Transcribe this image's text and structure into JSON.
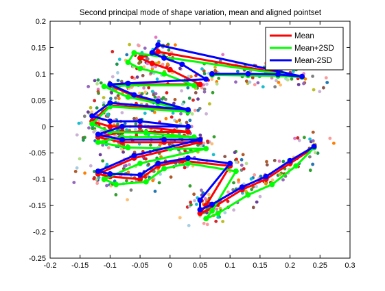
{
  "chart_data": {
    "type": "line",
    "title": "Second principal mode of shape variation, mean and aligned pointset",
    "xlabel": "",
    "ylabel": "",
    "xlim": [
      -0.2,
      0.3
    ],
    "ylim": [
      -0.25,
      0.2
    ],
    "xticks": [
      "-0.2",
      "-0.15",
      "-0.1",
      "-0.05",
      "0",
      "0.05",
      "0.1",
      "0.15",
      "0.2",
      "0.25",
      "0.3"
    ],
    "yticks": [
      "0.2",
      "0.15",
      "0.1",
      "0.05",
      "0",
      "-0.05",
      "-0.1",
      "-0.15",
      "-0.2",
      "-0.25"
    ],
    "grid": false,
    "legend_position": "top-right",
    "series": [
      {
        "name": "Mean",
        "color": "#ff0000",
        "x": [
          0.07,
          0.13,
          0.18,
          0.22,
          -0.02,
          -0.05,
          -0.03,
          0.0,
          0.05,
          -0.07,
          -0.1,
          -0.06,
          -0.02,
          0.03,
          -0.1,
          -0.13,
          -0.1,
          -0.05,
          0.03,
          -0.08,
          -0.12,
          -0.08,
          -0.01,
          0.05,
          -0.06,
          -0.12,
          -0.1,
          -0.05,
          -0.02,
          0.02,
          0.1,
          0.06,
          0.05,
          0.07,
          0.12,
          0.16,
          0.2,
          0.24
        ],
        "y": [
          0.098,
          0.098,
          0.097,
          0.094,
          0.142,
          0.13,
          0.12,
          0.108,
          0.08,
          0.08,
          0.078,
          0.058,
          0.046,
          0.03,
          0.04,
          0.01,
          0.0,
          0.0,
          -0.01,
          -0.01,
          -0.02,
          -0.03,
          -0.03,
          -0.03,
          -0.06,
          -0.09,
          -0.095,
          -0.1,
          -0.075,
          -0.065,
          -0.075,
          -0.15,
          -0.165,
          -0.155,
          -0.12,
          -0.1,
          -0.07,
          -0.04
        ]
      },
      {
        "name": "Mean+2SD",
        "color": "#00ff00",
        "x": [
          0.07,
          0.13,
          0.18,
          0.22,
          -0.06,
          -0.07,
          -0.05,
          -0.01,
          0.04,
          -0.07,
          -0.11,
          -0.07,
          -0.02,
          0.03,
          -0.1,
          -0.13,
          -0.1,
          -0.04,
          0.04,
          -0.08,
          -0.12,
          -0.07,
          0.0,
          0.06,
          -0.05,
          -0.11,
          -0.09,
          -0.04,
          -0.01,
          0.03,
          0.11,
          0.07,
          0.06,
          0.08,
          0.13,
          0.17,
          0.21,
          0.24
        ],
        "y": [
          0.098,
          0.097,
          0.096,
          0.094,
          0.14,
          0.122,
          0.11,
          0.1,
          0.078,
          0.078,
          0.076,
          0.056,
          0.044,
          0.028,
          0.038,
          0.005,
          -0.01,
          -0.012,
          -0.02,
          -0.02,
          -0.03,
          -0.04,
          -0.042,
          -0.042,
          -0.07,
          -0.1,
          -0.11,
          -0.105,
          -0.08,
          -0.07,
          -0.085,
          -0.16,
          -0.175,
          -0.165,
          -0.13,
          -0.11,
          -0.075,
          -0.04
        ]
      },
      {
        "name": "Mean-2SD",
        "color": "#0000ff",
        "x": [
          0.07,
          0.13,
          0.18,
          0.22,
          -0.02,
          -0.03,
          -0.01,
          0.02,
          0.06,
          -0.07,
          -0.1,
          -0.06,
          -0.02,
          0.03,
          -0.1,
          -0.13,
          -0.1,
          -0.05,
          0.03,
          -0.08,
          -0.12,
          -0.08,
          -0.01,
          0.05,
          -0.06,
          -0.12,
          -0.1,
          -0.05,
          -0.02,
          0.03,
          0.1,
          0.05,
          0.05,
          0.07,
          0.12,
          0.16,
          0.2,
          0.24
        ],
        "y": [
          0.1,
          0.1,
          0.099,
          0.095,
          0.155,
          0.14,
          0.13,
          0.118,
          0.09,
          0.082,
          0.08,
          0.06,
          0.048,
          0.032,
          0.045,
          0.02,
          0.01,
          0.01,
          0.0,
          0.0,
          -0.015,
          -0.025,
          -0.025,
          -0.025,
          -0.055,
          -0.085,
          -0.09,
          -0.092,
          -0.07,
          -0.06,
          -0.07,
          -0.14,
          -0.158,
          -0.148,
          -0.115,
          -0.095,
          -0.065,
          -0.038
        ]
      }
    ],
    "scatter_colors": [
      "#e31a1c",
      "#33a02c",
      "#1f78b4",
      "#ff7f00",
      "#6a3d9a",
      "#b15928",
      "#a6cee3",
      "#b2df8a",
      "#fb9a99",
      "#fdbf6f",
      "#cab2d6",
      "#17becf",
      "#bcbd22",
      "#8c564b",
      "#e377c2",
      "#7f7f7f",
      "#2ca02c",
      "#d62728",
      "#9467bd",
      "#1a9850"
    ]
  }
}
